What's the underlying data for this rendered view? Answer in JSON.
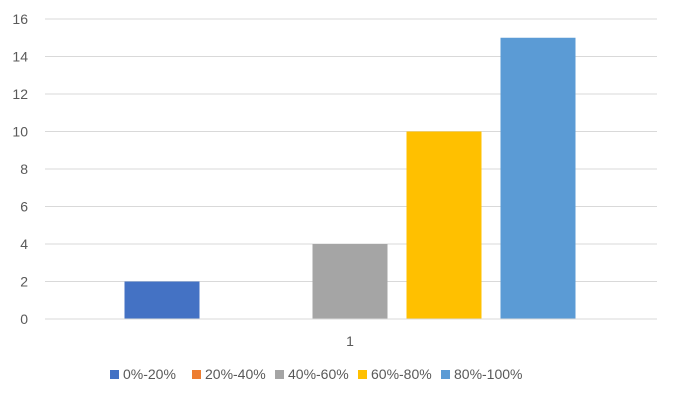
{
  "chart_data": {
    "type": "bar",
    "categories": [
      "1"
    ],
    "series": [
      {
        "name": "0%-20%",
        "values": [
          2
        ],
        "color": "#4472C4"
      },
      {
        "name": "20%-40%",
        "values": [
          0
        ],
        "color": "#ED7D31"
      },
      {
        "name": "40%-60%",
        "values": [
          4
        ],
        "color": "#A5A5A5"
      },
      {
        "name": "60%-80%",
        "values": [
          10
        ],
        "color": "#FFC000"
      },
      {
        "name": "80%-100%",
        "values": [
          15
        ],
        "color": "#5B9BD5"
      }
    ],
    "yticks": [
      "0",
      "2",
      "4",
      "6",
      "8",
      "10",
      "12",
      "14",
      "16"
    ],
    "ylim": [
      0,
      16
    ],
    "grid": true,
    "legend_position": "bottom",
    "title": "",
    "xlabel": "",
    "ylabel": ""
  }
}
